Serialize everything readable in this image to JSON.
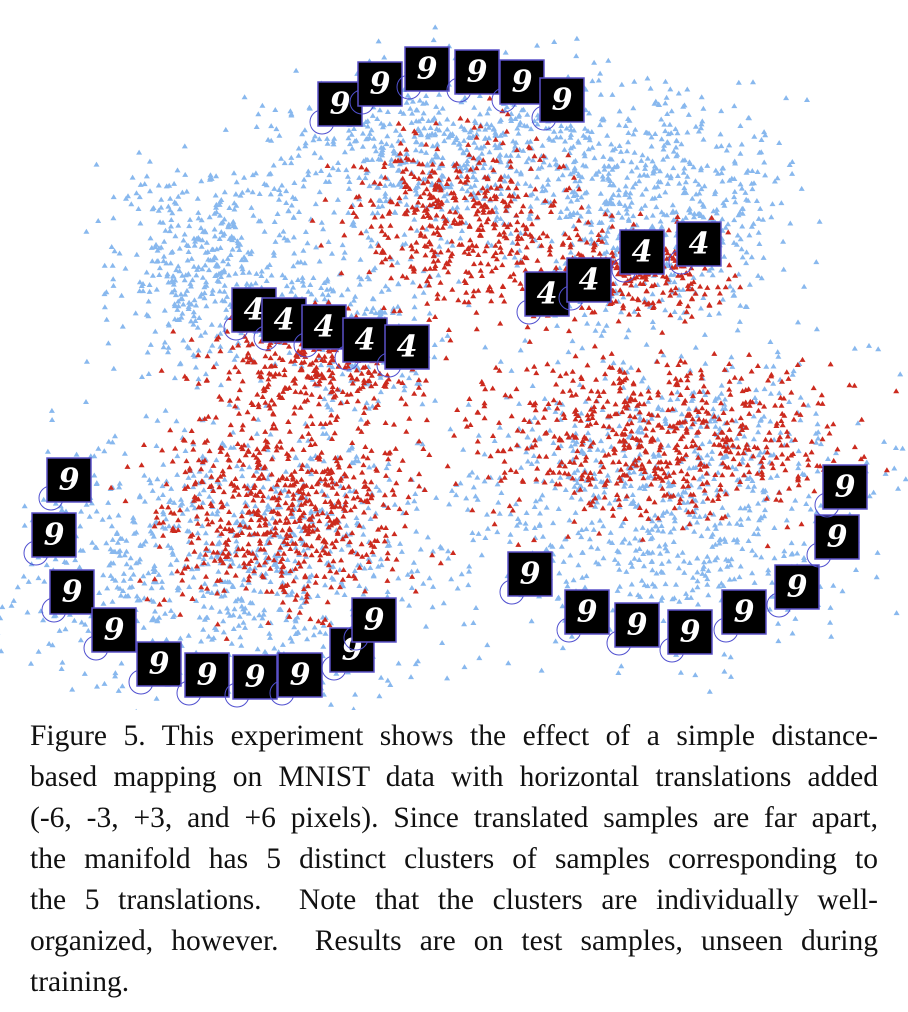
{
  "figure": {
    "thumbnails": [
      "9",
      "9",
      "9",
      "9",
      "9",
      "9",
      "4",
      "4",
      "4",
      "4",
      "4",
      "4",
      "4",
      "4",
      "4",
      "9",
      "9",
      "9",
      "9",
      "9",
      "9",
      "9",
      "9",
      "9",
      "9",
      "9",
      "9",
      "9",
      "9",
      "9",
      "9",
      "9",
      "9"
    ]
  },
  "caption": {
    "lines": [
      "Figure 5. This experiment shows the effect of a simple distance-",
      "based mapping on MNIST data with horizontal translations added",
      "(-6, -3, +3, and +6 pixels). Since translated samples are far apart,",
      "the manifold has 5 distinct clusters of samples corresponding to",
      "the 5 translations.  Note that the clusters are individually well-",
      "organized, however.  Results are on test samples, unseen during",
      "training."
    ]
  }
}
